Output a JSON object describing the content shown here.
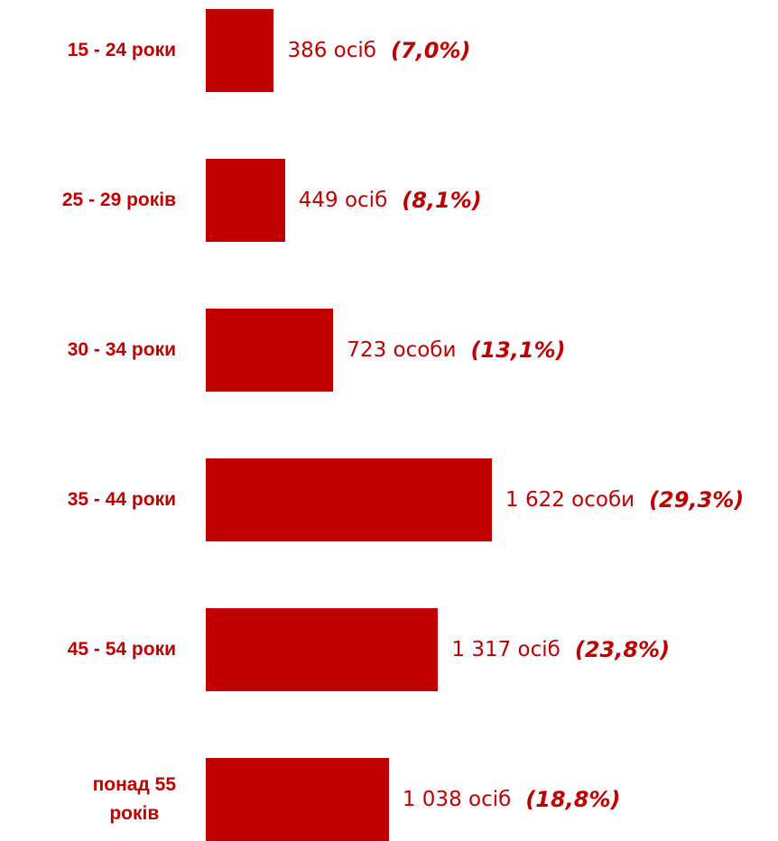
{
  "chart_data": {
    "type": "bar",
    "orientation": "horizontal",
    "color": "#c00000",
    "categories": [
      "15 - 24 роки",
      "25 - 29 років",
      "30 - 34 роки",
      "35 - 44 роки",
      "45 - 54 роки",
      "понад 55\nроків"
    ],
    "values": [
      386,
      449,
      723,
      1622,
      1317,
      1038
    ],
    "value_labels": [
      "386 осіб",
      "449 осіб",
      "723 особи",
      "1 622 особи",
      "1 317 осіб",
      "1 038 осіб"
    ],
    "share_labels": [
      "(7,0%)",
      "(8,1%)",
      "(13,1%)",
      "(29,3%)",
      "(23,8%)",
      "(18,8%)"
    ]
  }
}
